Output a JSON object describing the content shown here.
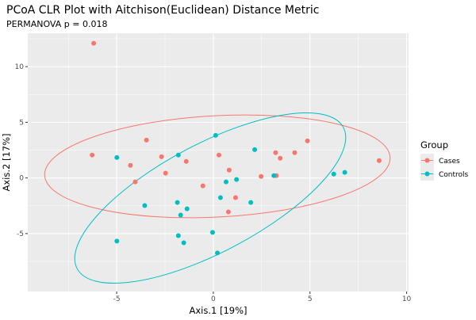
{
  "chart_data": {
    "type": "scatter",
    "title": "PCoA CLR Plot with Aitchison(Euclidean) Distance Metric",
    "subtitle": "PERMANOVA p = 0.018",
    "xlabel": "Axis.1  [19%]",
    "ylabel": "Axis.2  [17%]",
    "xlim": [
      -9.6,
      10.1
    ],
    "ylim": [
      -10.2,
      13.0
    ],
    "x_ticks": [
      -5,
      0,
      5,
      10
    ],
    "y_ticks": [
      -5,
      0,
      5,
      10
    ],
    "grid": true,
    "legend": {
      "title": "Group",
      "position": "right"
    },
    "series": [
      {
        "name": "Cases",
        "color": "#F8766D",
        "ellipse": true,
        "points": [
          [
            -6.19,
            12.1
          ],
          [
            -6.27,
            2.06
          ],
          [
            -3.46,
            3.4
          ],
          [
            -4.29,
            1.13
          ],
          [
            -4.04,
            -0.35
          ],
          [
            -2.68,
            1.91
          ],
          [
            -2.47,
            0.43
          ],
          [
            -1.4,
            1.49
          ],
          [
            -0.54,
            -0.71
          ],
          [
            0.29,
            2.06
          ],
          [
            0.82,
            0.71
          ],
          [
            1.15,
            -1.77
          ],
          [
            0.78,
            -3.05
          ],
          [
            2.47,
            0.14
          ],
          [
            3.22,
            2.27
          ],
          [
            3.46,
            1.77
          ],
          [
            4.21,
            2.27
          ],
          [
            4.87,
            3.33
          ],
          [
            3.26,
            0.21
          ],
          [
            8.58,
            1.56
          ]
        ]
      },
      {
        "name": "Controls",
        "color": "#00BFC4",
        "ellipse": true,
        "points": [
          [
            -4.99,
            1.84
          ],
          [
            -3.55,
            -2.48
          ],
          [
            -4.99,
            -5.67
          ],
          [
            -1.81,
            2.06
          ],
          [
            -1.86,
            -2.2
          ],
          [
            -1.69,
            -3.33
          ],
          [
            -1.36,
            -2.77
          ],
          [
            -1.81,
            -5.18
          ],
          [
            -1.53,
            -5.82
          ],
          [
            -0.04,
            -4.89
          ],
          [
            0.12,
            3.83
          ],
          [
            0.21,
            -6.74
          ],
          [
            0.66,
            -0.35
          ],
          [
            0.37,
            -1.77
          ],
          [
            1.2,
            -0.14
          ],
          [
            2.14,
            2.55
          ],
          [
            1.94,
            -2.2
          ],
          [
            3.13,
            0.21
          ],
          [
            6.23,
            0.35
          ],
          [
            6.8,
            0.5
          ]
        ]
      }
    ]
  }
}
